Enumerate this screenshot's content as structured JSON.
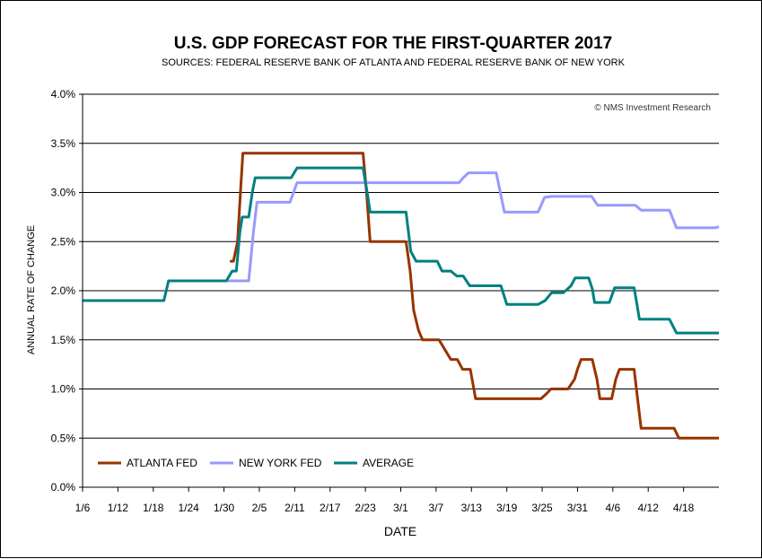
{
  "chart_data": {
    "type": "line",
    "title": "U.S. GDP FORECAST FOR THE FIRST-QUARTER 2017",
    "subtitle": "SOURCES: FEDERAL RESERVE BANK OF ATLANTA AND FEDERAL RESERVE BANK OF NEW YORK",
    "xlabel": "DATE",
    "ylabel": "ANNUAL RATE OF CHANGE",
    "watermark": "© NMS Investment Research",
    "x_tick_labels": [
      "1/6",
      "1/12",
      "1/18",
      "1/24",
      "1/30",
      "2/5",
      "2/11",
      "2/17",
      "2/23",
      "3/1",
      "3/7",
      "3/13",
      "3/19",
      "3/25",
      "3/31",
      "4/6",
      "4/12",
      "4/18"
    ],
    "y_tick_labels": [
      "0.0%",
      "0.5%",
      "1.0%",
      "1.5%",
      "2.0%",
      "2.5%",
      "3.0%",
      "3.5%",
      "4.0%"
    ],
    "xlim": [
      0,
      108
    ],
    "ylim": [
      0,
      4.0
    ],
    "grid": "horizontal",
    "legend_position": "bottom-left",
    "x_units": "days since 1/6",
    "series": [
      {
        "name": "ATLANTA FED",
        "color": "#993300",
        "points": [
          [
            25,
            2.3
          ],
          [
            25.6,
            2.3
          ],
          [
            26.3,
            2.5
          ],
          [
            26.8,
            3.0
          ],
          [
            27.2,
            3.4
          ],
          [
            47.6,
            3.4
          ],
          [
            48.2,
            3.0
          ],
          [
            48.8,
            2.5
          ],
          [
            54.9,
            2.5
          ],
          [
            55.6,
            2.2
          ],
          [
            56.2,
            1.8
          ],
          [
            57,
            1.6
          ],
          [
            57.7,
            1.5
          ],
          [
            60.5,
            1.5
          ],
          [
            61.5,
            1.4
          ],
          [
            62.5,
            1.3
          ],
          [
            63.6,
            1.3
          ],
          [
            64.5,
            1.2
          ],
          [
            65.8,
            1.2
          ],
          [
            66.7,
            0.9
          ],
          [
            77.8,
            0.9
          ],
          [
            78.7,
            0.95
          ],
          [
            79.5,
            1.0
          ],
          [
            82.4,
            1.0
          ],
          [
            83.5,
            1.1
          ],
          [
            84,
            1.2
          ],
          [
            84.6,
            1.3
          ],
          [
            86.5,
            1.3
          ],
          [
            87.3,
            1.1
          ],
          [
            87.8,
            0.9
          ],
          [
            89.8,
            0.9
          ],
          [
            90.5,
            1.1
          ],
          [
            91.1,
            1.2
          ],
          [
            93.6,
            1.2
          ],
          [
            94.2,
            0.9
          ],
          [
            94.8,
            0.6
          ],
          [
            100.4,
            0.6
          ],
          [
            101.2,
            0.5
          ],
          [
            108,
            0.5
          ]
        ]
      },
      {
        "name": "NEW YORK FED",
        "color": "#9999ff",
        "points": [
          [
            24.4,
            2.1
          ],
          [
            28.2,
            2.1
          ],
          [
            29,
            2.6
          ],
          [
            29.6,
            2.9
          ],
          [
            35.2,
            2.9
          ],
          [
            36.4,
            3.1
          ],
          [
            63.9,
            3.1
          ],
          [
            64.6,
            3.15
          ],
          [
            65.5,
            3.2
          ],
          [
            70.2,
            3.2
          ],
          [
            71.6,
            2.8
          ],
          [
            77.3,
            2.8
          ],
          [
            78.4,
            2.95
          ],
          [
            79.6,
            2.96
          ],
          [
            86.4,
            2.96
          ],
          [
            87.4,
            2.87
          ],
          [
            93.8,
            2.87
          ],
          [
            94.8,
            2.82
          ],
          [
            99.6,
            2.82
          ],
          [
            100.8,
            2.64
          ],
          [
            107.3,
            2.64
          ],
          [
            108,
            2.65
          ]
        ]
      },
      {
        "name": "AVERAGE",
        "color": "#008080",
        "points": [
          [
            0,
            1.9
          ],
          [
            13.8,
            1.9
          ],
          [
            14.6,
            2.1
          ],
          [
            24.4,
            2.1
          ],
          [
            25.4,
            2.2
          ],
          [
            26.1,
            2.2
          ],
          [
            26.7,
            2.6
          ],
          [
            27.1,
            2.75
          ],
          [
            28.2,
            2.75
          ],
          [
            28.8,
            3.0
          ],
          [
            29.3,
            3.15
          ],
          [
            35.4,
            3.15
          ],
          [
            36.4,
            3.25
          ],
          [
            47.6,
            3.25
          ],
          [
            48.3,
            3.0
          ],
          [
            48.8,
            2.8
          ],
          [
            54.9,
            2.8
          ],
          [
            55.7,
            2.4
          ],
          [
            56.6,
            2.3
          ],
          [
            60.2,
            2.3
          ],
          [
            61,
            2.2
          ],
          [
            62.5,
            2.2
          ],
          [
            63.5,
            2.15
          ],
          [
            64.6,
            2.15
          ],
          [
            65.7,
            2.05
          ],
          [
            71,
            2.05
          ],
          [
            72,
            1.86
          ],
          [
            77.3,
            1.86
          ],
          [
            78.5,
            1.9
          ],
          [
            79.6,
            1.98
          ],
          [
            81.6,
            1.98
          ],
          [
            82.9,
            2.05
          ],
          [
            83.6,
            2.13
          ],
          [
            85.9,
            2.13
          ],
          [
            86.5,
            2.02
          ],
          [
            86.9,
            1.88
          ],
          [
            89.4,
            1.88
          ],
          [
            90.3,
            2.03
          ],
          [
            93.6,
            2.03
          ],
          [
            94.1,
            1.86
          ],
          [
            94.5,
            1.71
          ],
          [
            99.6,
            1.71
          ],
          [
            100.8,
            1.57
          ],
          [
            108,
            1.57
          ]
        ]
      }
    ]
  }
}
